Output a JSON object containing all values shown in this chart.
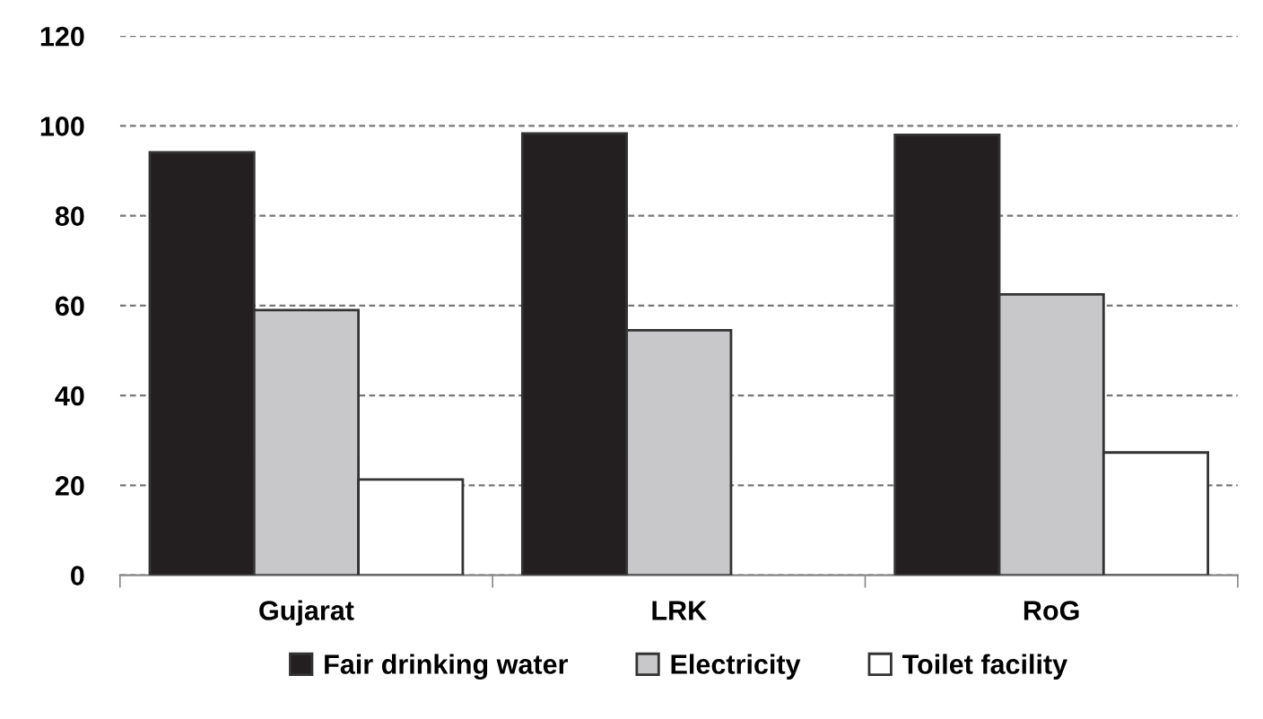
{
  "chart_data": {
    "type": "bar",
    "categories": [
      "Gujarat",
      "LRK",
      "RoG"
    ],
    "series": [
      {
        "name": "Fair drinking water",
        "color": "#231f20",
        "values": [
          94.1,
          98.3,
          98.0
        ]
      },
      {
        "name": "Electricity",
        "color": "#c8c8ca",
        "values": [
          59.0,
          54.5,
          62.5
        ]
      },
      {
        "name": "Toilet facility",
        "color": "#ffffff",
        "values": [
          21.3,
          null,
          27.3
        ]
      }
    ],
    "ylim": [
      0,
      120
    ],
    "yticks": [
      0,
      20,
      40,
      60,
      80,
      100,
      120
    ],
    "grid": "y",
    "legend": "bottom"
  }
}
